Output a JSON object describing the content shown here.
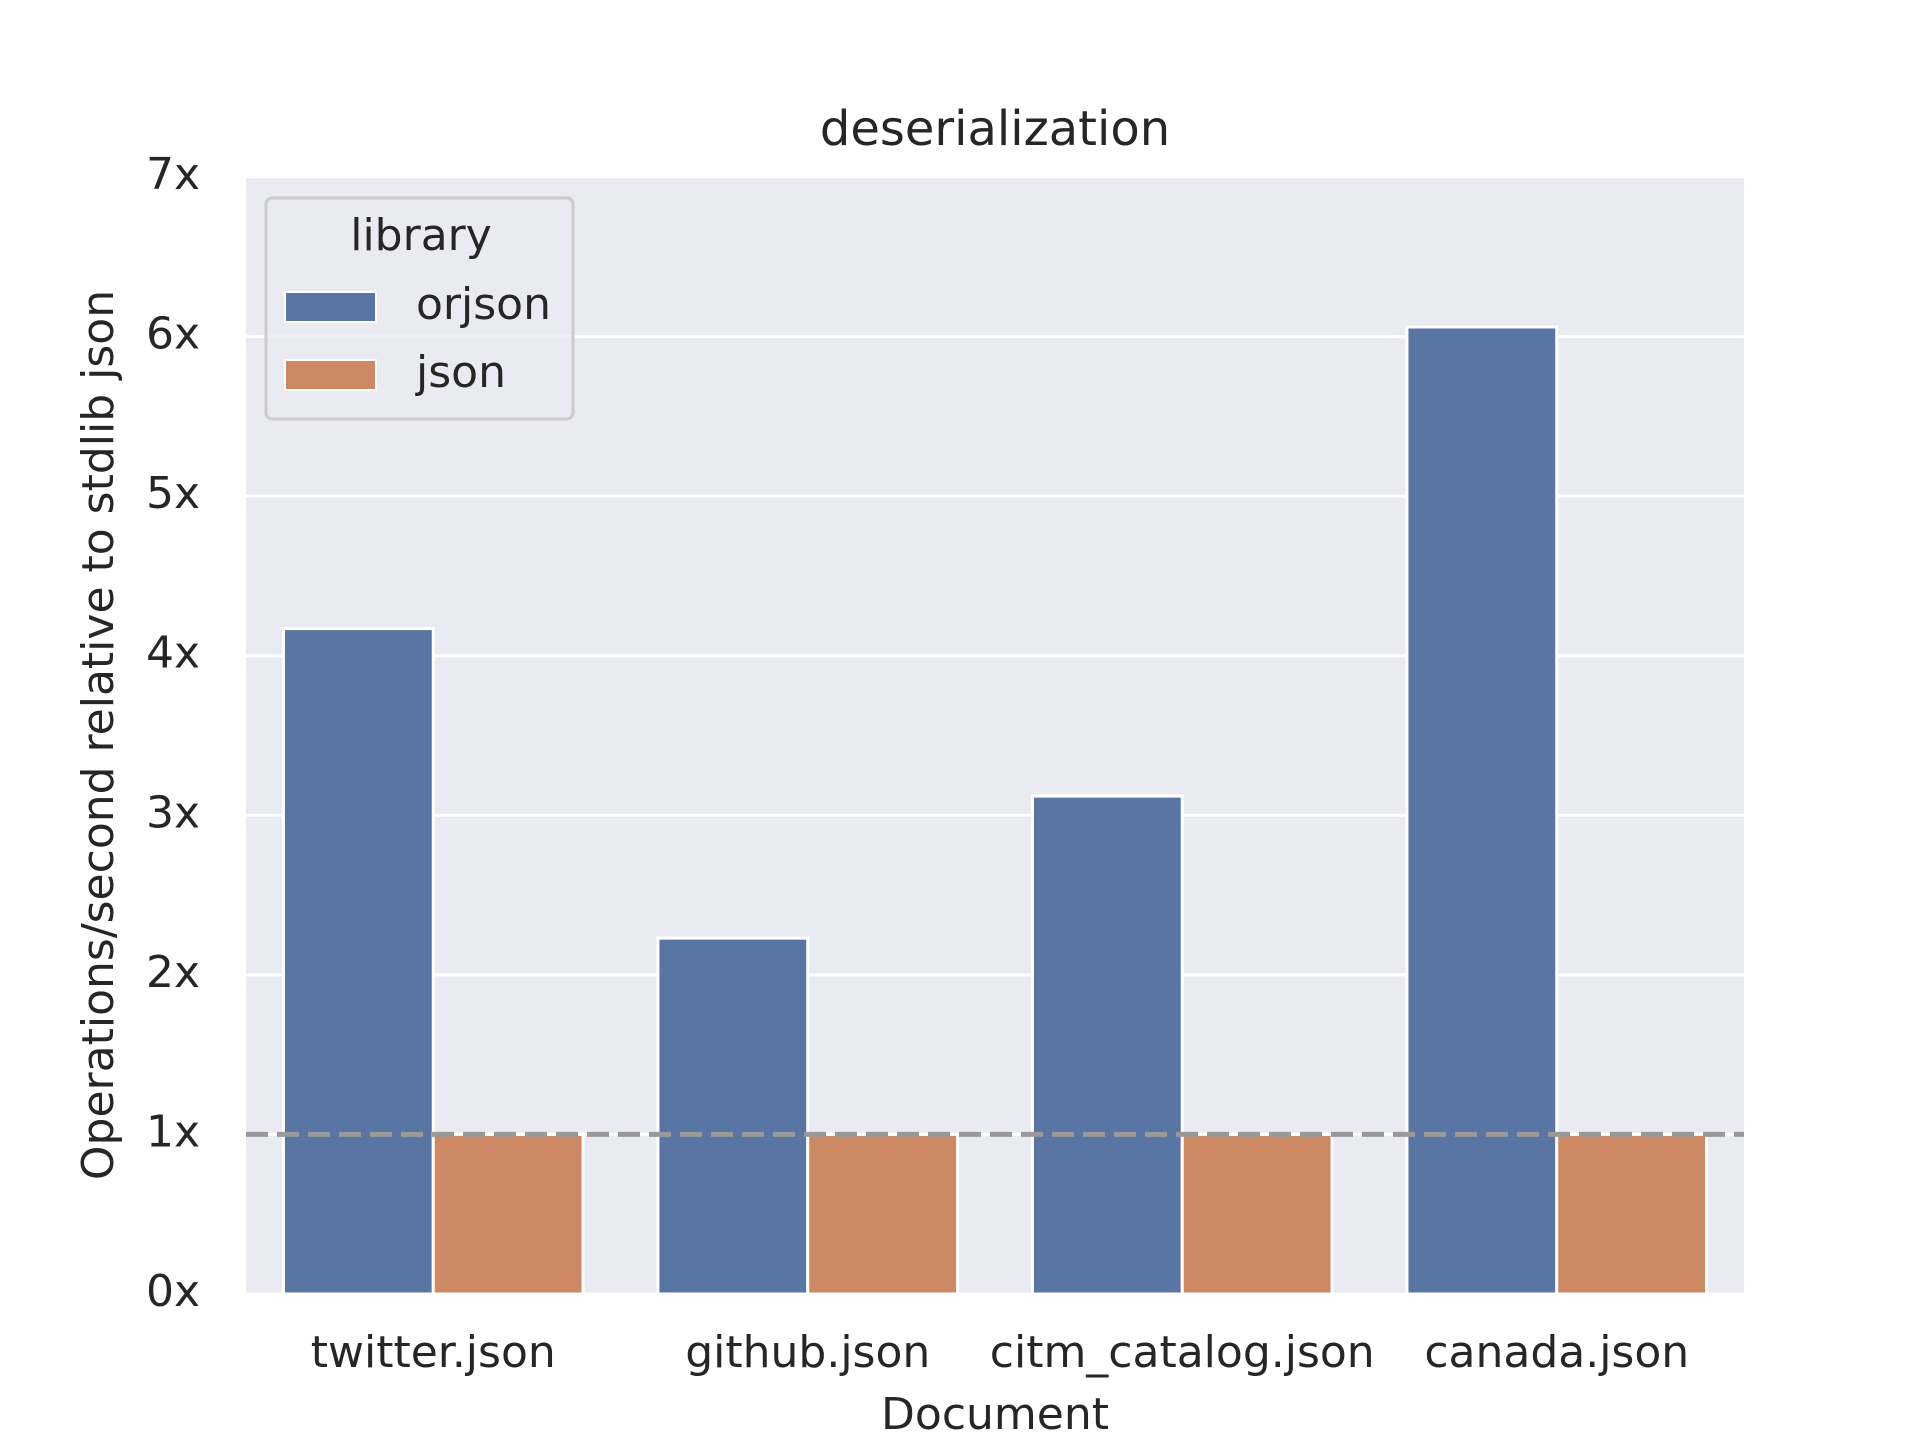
{
  "chart_data": {
    "type": "bar",
    "title": "deserialization",
    "x_label": "Document",
    "y_label": "Operations/second relative to stdlib json",
    "categories": [
      "twitter.json",
      "github.json",
      "citm_catalog.json",
      "canada.json"
    ],
    "series": [
      {
        "name": "orjson",
        "color": "#5875a4",
        "values": [
          4.17,
          2.23,
          3.12,
          6.06
        ]
      },
      {
        "name": "json",
        "color": "#cc8963",
        "values": [
          1,
          1,
          1,
          1
        ]
      }
    ],
    "ylim": [
      0,
      7
    ],
    "yticks": [
      {
        "value": 0,
        "label": "0x"
      },
      {
        "value": 1,
        "label": "1x"
      },
      {
        "value": 2,
        "label": "2x"
      },
      {
        "value": 3,
        "label": "3x"
      },
      {
        "value": 4,
        "label": "4x"
      },
      {
        "value": 5,
        "label": "5x"
      },
      {
        "value": 6,
        "label": "6x"
      },
      {
        "value": 7,
        "label": "7x"
      }
    ],
    "reference_line": 1,
    "legend_title": "library",
    "legend_position": "upper left",
    "grid": true
  }
}
